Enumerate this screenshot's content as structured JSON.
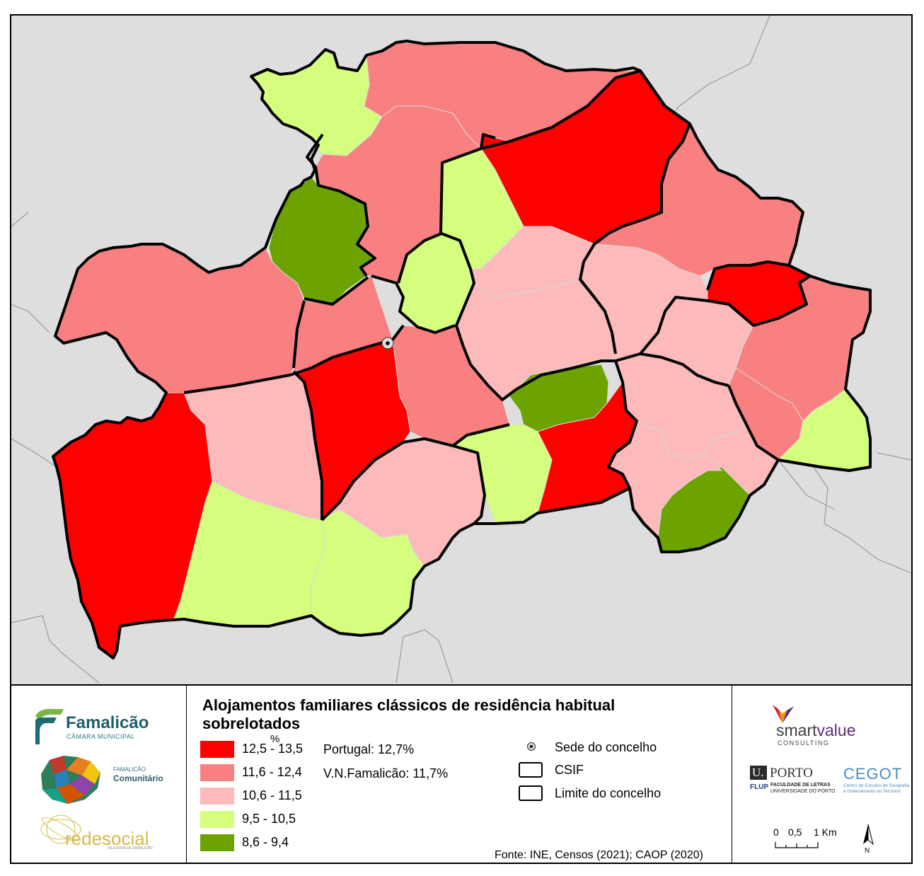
{
  "legend": {
    "title": "Alojamentos familiares clássicos de residência habitual sobrelotados",
    "unit": "%",
    "classes": [
      {
        "label": "12,5 - 13,5",
        "color": "#ff0000"
      },
      {
        "label": "11,6 - 12,4",
        "color": "#f98080"
      },
      {
        "label": "10,6 - 11,5",
        "color": "#fcbaba"
      },
      {
        "label": "9,5 - 10,5",
        "color": "#d6fe7e"
      },
      {
        "label": "8,6 - 9,4",
        "color": "#6ca301"
      }
    ],
    "stats": [
      {
        "label": "Portugal: 12,7%"
      },
      {
        "label": "V.N.Famalicão: 11,7%"
      }
    ],
    "symbols": {
      "seat": "Sede do concelho",
      "csif": "CSIF",
      "boundary": "Limite do concelho"
    }
  },
  "source": "Fonte: INE, Censos (2021); CAOP (2020)",
  "scale_bar": {
    "ticks": [
      "0",
      "0,5",
      "1 Km"
    ]
  },
  "north_arrow": {
    "label": "N",
    "icon": "north-arrow-icon"
  },
  "logos": {
    "famalicao": {
      "name": "Famalicão",
      "subtitle": "CÂMARA MUNICIPAL"
    },
    "comunitario": {
      "line1": "FAMALICÃO",
      "line2": "Comunitário"
    },
    "redesocial": {
      "name": "redesocial",
      "subtitle": "VILA NOVA DE FAMALICÃO"
    },
    "smartvalue": {
      "name_a": "smart",
      "name_b": "value",
      "subtitle": "CONSULTING"
    },
    "uporto": {
      "u": "U.",
      "porto": "PORTO",
      "flup": "FLUP",
      "line1": "FACULDADE DE LETRAS",
      "line2": "UNIVERSIDADE DO PORTO"
    },
    "cegot": {
      "name": "CEGOT",
      "line1": "Centro de Estudos de Geografia",
      "line2": "e Ordenamento do Território"
    }
  },
  "map": {
    "background": "#dedede",
    "outside_lines": "#9a9a9a",
    "parishes": [
      {
        "id": "p1",
        "class": 3
      },
      {
        "id": "p2",
        "class": 1
      },
      {
        "id": "p3",
        "class": 0
      },
      {
        "id": "p4",
        "class": 3
      },
      {
        "id": "p5",
        "class": 1
      },
      {
        "id": "p6",
        "class": 4
      },
      {
        "id": "p7",
        "class": 1
      },
      {
        "id": "p8",
        "class": 0
      },
      {
        "id": "p9",
        "class": 3
      },
      {
        "id": "p10",
        "class": 3
      },
      {
        "id": "p11",
        "class": 2
      },
      {
        "id": "p12",
        "class": 1
      },
      {
        "id": "p13",
        "class": 2
      },
      {
        "id": "p14",
        "class": 1
      },
      {
        "id": "p15",
        "class": 0
      },
      {
        "id": "p16",
        "class": 1
      },
      {
        "id": "p17",
        "class": 0
      },
      {
        "id": "p18",
        "class": 1
      },
      {
        "id": "p19",
        "class": 2
      },
      {
        "id": "p20",
        "class": 2
      },
      {
        "id": "p21",
        "class": 2
      },
      {
        "id": "p22",
        "class": 1
      },
      {
        "id": "p23",
        "class": 2
      },
      {
        "id": "p24",
        "class": 1
      },
      {
        "id": "p25",
        "class": 3
      },
      {
        "id": "p26",
        "class": 4
      },
      {
        "id": "p27",
        "class": 0
      },
      {
        "id": "p28",
        "class": 3
      },
      {
        "id": "p29",
        "class": 2
      },
      {
        "id": "p30",
        "class": 3
      },
      {
        "id": "p31",
        "class": 4
      },
      {
        "id": "p32",
        "class": 2
      },
      {
        "id": "p33",
        "class": 2
      },
      {
        "id": "p34",
        "class": 3
      }
    ]
  }
}
